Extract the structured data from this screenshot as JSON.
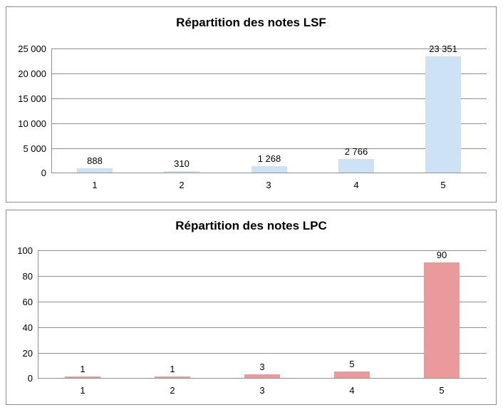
{
  "style": {
    "grid_color": "#8f8f8f",
    "axis_color": "#8f8f8f",
    "panel_border_color": "#8c8c8c",
    "text_color": "#000000",
    "background": "#ffffff"
  },
  "chart_data": [
    {
      "type": "bar",
      "title": "Répartition des notes LSF",
      "categories": [
        "1",
        "2",
        "3",
        "4",
        "5"
      ],
      "values": [
        888,
        310,
        1268,
        2766,
        23351
      ],
      "value_labels": [
        "888",
        "310",
        "1 268",
        "2 766",
        "23 351"
      ],
      "yticks": [
        0,
        5000,
        10000,
        15000,
        20000,
        25000
      ],
      "ytick_labels": [
        "0",
        "5 000",
        "10 000",
        "15 000",
        "20 000",
        "25 000"
      ],
      "ylim": [
        0,
        25000
      ],
      "xlabel": "",
      "ylabel": "",
      "grid": true,
      "legend": "none",
      "bar_color": "#cde2f5"
    },
    {
      "type": "bar",
      "title": "Répartition des notes LPC",
      "categories": [
        "1",
        "2",
        "3",
        "4",
        "5"
      ],
      "values": [
        1,
        1,
        3,
        5,
        90
      ],
      "value_labels": [
        "1",
        "1",
        "3",
        "5",
        "90"
      ],
      "yticks": [
        0,
        20,
        40,
        60,
        80,
        100
      ],
      "ytick_labels": [
        "0",
        "20",
        "40",
        "60",
        "80",
        "100"
      ],
      "ylim": [
        0,
        100
      ],
      "xlabel": "",
      "ylabel": "",
      "grid": true,
      "legend": "none",
      "bar_color": "#ea9a9b"
    }
  ]
}
